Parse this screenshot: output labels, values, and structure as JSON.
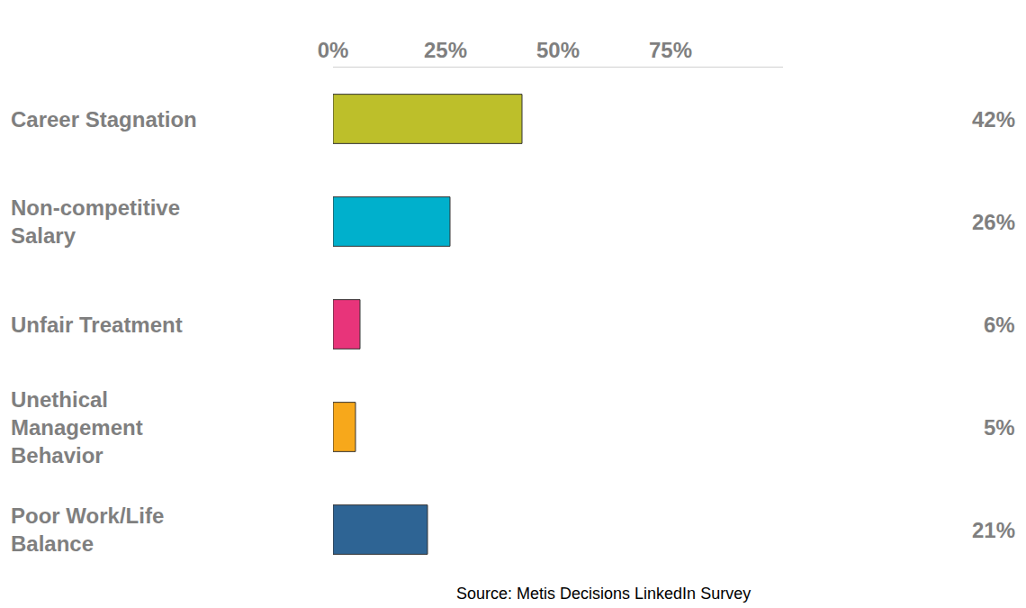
{
  "chart_data": {
    "type": "bar",
    "orientation": "horizontal",
    "categories": [
      "Career Stagnation",
      "Non-competitive Salary",
      "Unfair Treatment",
      "Unethical Management Behavior",
      "Poor Work/Life Balance"
    ],
    "values": [
      42,
      26,
      6,
      5,
      21
    ],
    "value_labels": [
      "42%",
      "26%",
      "6%",
      "5%",
      "21%"
    ],
    "colors": [
      "#bdbf2a",
      "#00b0cc",
      "#e8347a",
      "#f7a81b",
      "#2e6494"
    ],
    "xlim": [
      0,
      100
    ],
    "xticks": [
      {
        "value": 0,
        "label": "0%"
      },
      {
        "value": 25,
        "label": "25%"
      },
      {
        "value": 50,
        "label": "50%"
      },
      {
        "value": 75,
        "label": "75%"
      }
    ],
    "grid": false,
    "data_labels": true,
    "annotations": [
      "Source: Metis Decisions LinkedIn Survey"
    ]
  }
}
